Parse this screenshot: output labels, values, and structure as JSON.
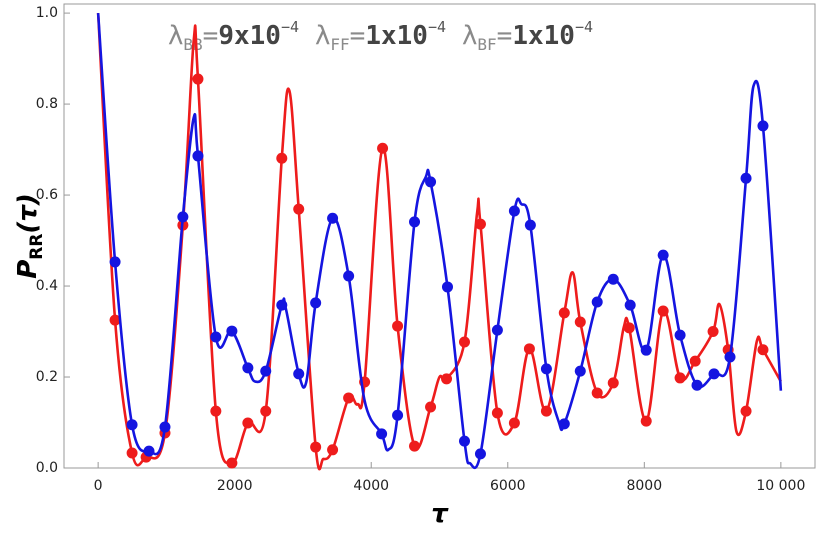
{
  "chart_data": {
    "type": "line",
    "annotations": [
      {
        "symbol": "λ",
        "sub": "BB",
        "eq": "=",
        "value": "9x10",
        "sup": "−4"
      },
      {
        "symbol": "λ",
        "sub": "FF",
        "eq": "=",
        "value": "1x10",
        "sup": "−4"
      },
      {
        "symbol": "λ",
        "sub": "BF",
        "eq": "=",
        "value": "1x10",
        "sup": "−4"
      }
    ],
    "x_label": "τ",
    "y_label": {
      "text": "P",
      "sub": "RR",
      "suffix": "(τ)"
    },
    "xlim": [
      -500,
      10500
    ],
    "ylim": [
      0,
      1.02
    ],
    "xticks": [
      0,
      2000,
      4000,
      6000,
      8000,
      {
        "value": 10000,
        "label": "10 000"
      }
    ],
    "yticks": [
      {
        "value": 0,
        "label": "0.0"
      },
      0.2,
      0.4,
      0.6,
      0.8,
      {
        "value": 1,
        "label": "1.0"
      }
    ],
    "series": [
      {
        "color": "#ee1c1c",
        "x": [
          0,
          248,
          497,
          703,
          979,
          1241,
          1400,
          1462,
          1724,
          1959,
          2193,
          2455,
          2690,
          2800,
          2938,
          3186,
          3300,
          3434,
          3669,
          3800,
          3903,
          4166,
          4386,
          4634,
          4869,
          5000,
          5103,
          5366,
          5550,
          5600,
          5848,
          6097,
          6317,
          6566,
          6828,
          6950,
          7062,
          7310,
          7545,
          7700,
          7779,
          8028,
          8276,
          8524,
          8745,
          9007,
          9100,
          9228,
          9350,
          9490,
          9650,
          9738,
          10000
        ],
        "values": [
          1.0,
          0.325,
          0.033,
          0.024,
          0.077,
          0.534,
          0.94,
          0.855,
          0.125,
          0.011,
          0.099,
          0.125,
          0.681,
          0.83,
          0.569,
          0.046,
          0.02,
          0.04,
          0.154,
          0.14,
          0.189,
          0.703,
          0.312,
          0.048,
          0.134,
          0.2,
          0.196,
          0.277,
          0.56,
          0.536,
          0.121,
          0.099,
          0.262,
          0.125,
          0.341,
          0.43,
          0.321,
          0.165,
          0.187,
          0.31,
          0.308,
          0.103,
          0.345,
          0.198,
          0.235,
          0.3,
          0.36,
          0.26,
          0.08,
          0.125,
          0.28,
          0.26,
          0.19
        ],
        "marker_x": [
          248,
          497,
          703,
          979,
          1241,
          1462,
          1724,
          1959,
          2193,
          2455,
          2690,
          2938,
          3186,
          3434,
          3669,
          3903,
          4166,
          4386,
          4634,
          4869,
          5103,
          5366,
          5600,
          5848,
          6097,
          6317,
          6566,
          6828,
          7062,
          7310,
          7545,
          7779,
          8028,
          8276,
          8524,
          8745,
          9007,
          9228,
          9490,
          9738
        ],
        "marker_values": [
          0.325,
          0.033,
          0.024,
          0.077,
          0.534,
          0.855,
          0.125,
          0.011,
          0.099,
          0.125,
          0.681,
          0.569,
          0.046,
          0.04,
          0.154,
          0.189,
          0.703,
          0.312,
          0.048,
          0.134,
          0.196,
          0.277,
          0.536,
          0.121,
          0.099,
          0.262,
          0.125,
          0.341,
          0.321,
          0.165,
          0.187,
          0.308,
          0.103,
          0.345,
          0.198,
          0.235,
          0.3,
          0.26,
          0.125,
          0.26
        ]
      },
      {
        "color": "#1515e0",
        "x": [
          0,
          248,
          497,
          745,
          979,
          1241,
          1400,
          1462,
          1724,
          1959,
          2193,
          2300,
          2455,
          2690,
          2750,
          2938,
          3050,
          3186,
          3434,
          3669,
          3900,
          4152,
          4250,
          4386,
          4634,
          4800,
          4869,
          5117,
          5366,
          5450,
          5600,
          5848,
          6097,
          6200,
          6331,
          6566,
          6750,
          6828,
          7062,
          7310,
          7545,
          7793,
          8028,
          8276,
          8524,
          8772,
          9021,
          9255,
          9490,
          9600,
          9738,
          10000
        ],
        "values": [
          1.0,
          0.453,
          0.095,
          0.037,
          0.09,
          0.552,
          0.77,
          0.686,
          0.288,
          0.301,
          0.22,
          0.19,
          0.213,
          0.358,
          0.35,
          0.207,
          0.19,
          0.363,
          0.549,
          0.422,
          0.15,
          0.075,
          0.04,
          0.116,
          0.541,
          0.64,
          0.629,
          0.398,
          0.059,
          0.01,
          0.031,
          0.303,
          0.565,
          0.58,
          0.534,
          0.218,
          0.1,
          0.097,
          0.213,
          0.365,
          0.415,
          0.358,
          0.259,
          0.468,
          0.292,
          0.182,
          0.207,
          0.244,
          0.637,
          0.84,
          0.752,
          0.17
        ],
        "marker_x": [
          248,
          497,
          745,
          979,
          1241,
          1462,
          1724,
          1959,
          2193,
          2455,
          2690,
          2938,
          3186,
          3434,
          3669,
          4152,
          4386,
          4634,
          4869,
          5117,
          5366,
          5600,
          5848,
          6097,
          6331,
          6566,
          6828,
          7062,
          7310,
          7545,
          7793,
          8028,
          8276,
          8524,
          8772,
          9021,
          9255,
          9490,
          9738
        ],
        "marker_values": [
          0.453,
          0.095,
          0.037,
          0.09,
          0.552,
          0.686,
          0.288,
          0.301,
          0.22,
          0.213,
          0.358,
          0.207,
          0.363,
          0.549,
          0.422,
          0.075,
          0.116,
          0.541,
          0.629,
          0.398,
          0.059,
          0.031,
          0.303,
          0.565,
          0.534,
          0.218,
          0.097,
          0.213,
          0.365,
          0.415,
          0.358,
          0.259,
          0.468,
          0.292,
          0.182,
          0.207,
          0.244,
          0.637,
          0.752
        ]
      }
    ]
  }
}
